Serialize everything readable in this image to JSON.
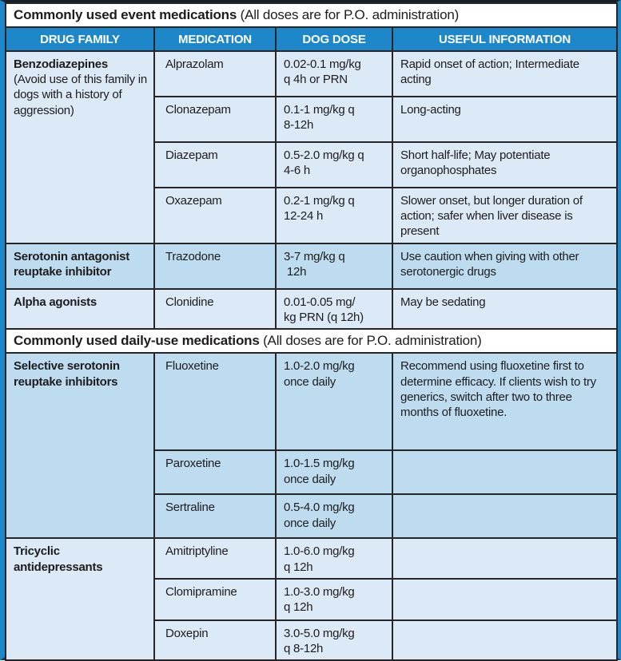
{
  "colors": {
    "header_bar_blue": "#1d87c9",
    "frame_blue": "#1e87c9",
    "row_light_blue": "#dce9f6",
    "row_medium_blue": "#bedcf0",
    "grid_line": "#272525",
    "header_text": "#ffffff",
    "body_text": "#1f1c1d"
  },
  "columns": [
    "DRUG FAMILY",
    "MEDICATION",
    "DOG DOSE",
    "USEFUL INFORMATION"
  ],
  "sections": [
    {
      "title_bold": "Commonly used event medications",
      "title_rest": " (All doses are for P.O. administration)",
      "families": [
        {
          "name": "Benzodiazepines",
          "note": "(Avoid use of this family in dogs with a history of aggression)",
          "meds": [
            {
              "medication": "Alprazolam",
              "dose": "0.02-0.1 mg/kg\nq 4h or PRN",
              "info": "Rapid onset of action; Intermediate acting"
            },
            {
              "medication": "Clonazepam",
              "dose": "0.1-1 mg/kg q\n8-12h",
              "info": "Long-acting"
            },
            {
              "medication": "Diazepam",
              "dose": "0.5-2.0 mg/kg q\n4-6 h",
              "info": "Short half-life; May potentiate organophosphates"
            },
            {
              "medication": "Oxazepam",
              "dose": "0.2-1 mg/kg q\n12-24 h",
              "info": "Slower onset, but longer duration of action; safer when liver disease is present"
            }
          ]
        },
        {
          "name": "Serotonin antagonist reuptake inhibitor",
          "note": "",
          "meds": [
            {
              "medication": "Trazodone",
              "dose": "3-7 mg/kg q\n 12h",
              "info": "Use caution when giving with other serotonergic drugs"
            }
          ]
        },
        {
          "name": "Alpha agonists",
          "note": "",
          "meds": [
            {
              "medication": "Clonidine",
              "dose": "0.01-0.05 mg/\nkg PRN (q 12h)",
              "info": "May be sedating"
            }
          ]
        }
      ]
    },
    {
      "title_bold": "Commonly used daily-use medications",
      "title_rest": " (All doses are for P.O. administration)",
      "families": [
        {
          "name": "Selective serotonin reuptake inhibitors",
          "note": "",
          "meds": [
            {
              "medication": "Fluoxetine",
              "dose": "1.0-2.0 mg/kg\nonce daily",
              "info": "Recommend using fluoxetine first to determine efficacy. If clients wish to try generics, switch after two to three months of fluoxetine."
            },
            {
              "medication": "Paroxetine",
              "dose": "1.0-1.5 mg/kg\nonce daily",
              "info": ""
            },
            {
              "medication": "Sertraline",
              "dose": "0.5-4.0 mg/kg\nonce daily",
              "info": ""
            }
          ]
        },
        {
          "name": "Tricyclic antidepressants",
          "note": "",
          "meds": [
            {
              "medication": "Amitriptyline",
              "dose": "1.0-6.0 mg/kg\nq 12h",
              "info": ""
            },
            {
              "medication": "Clomipramine",
              "dose": "1.0-3.0 mg/kg\nq 12h",
              "info": ""
            },
            {
              "medication": "Doxepin",
              "dose": "3.0-5.0 mg/kg\nq 8-12h",
              "info": ""
            }
          ]
        }
      ]
    }
  ]
}
